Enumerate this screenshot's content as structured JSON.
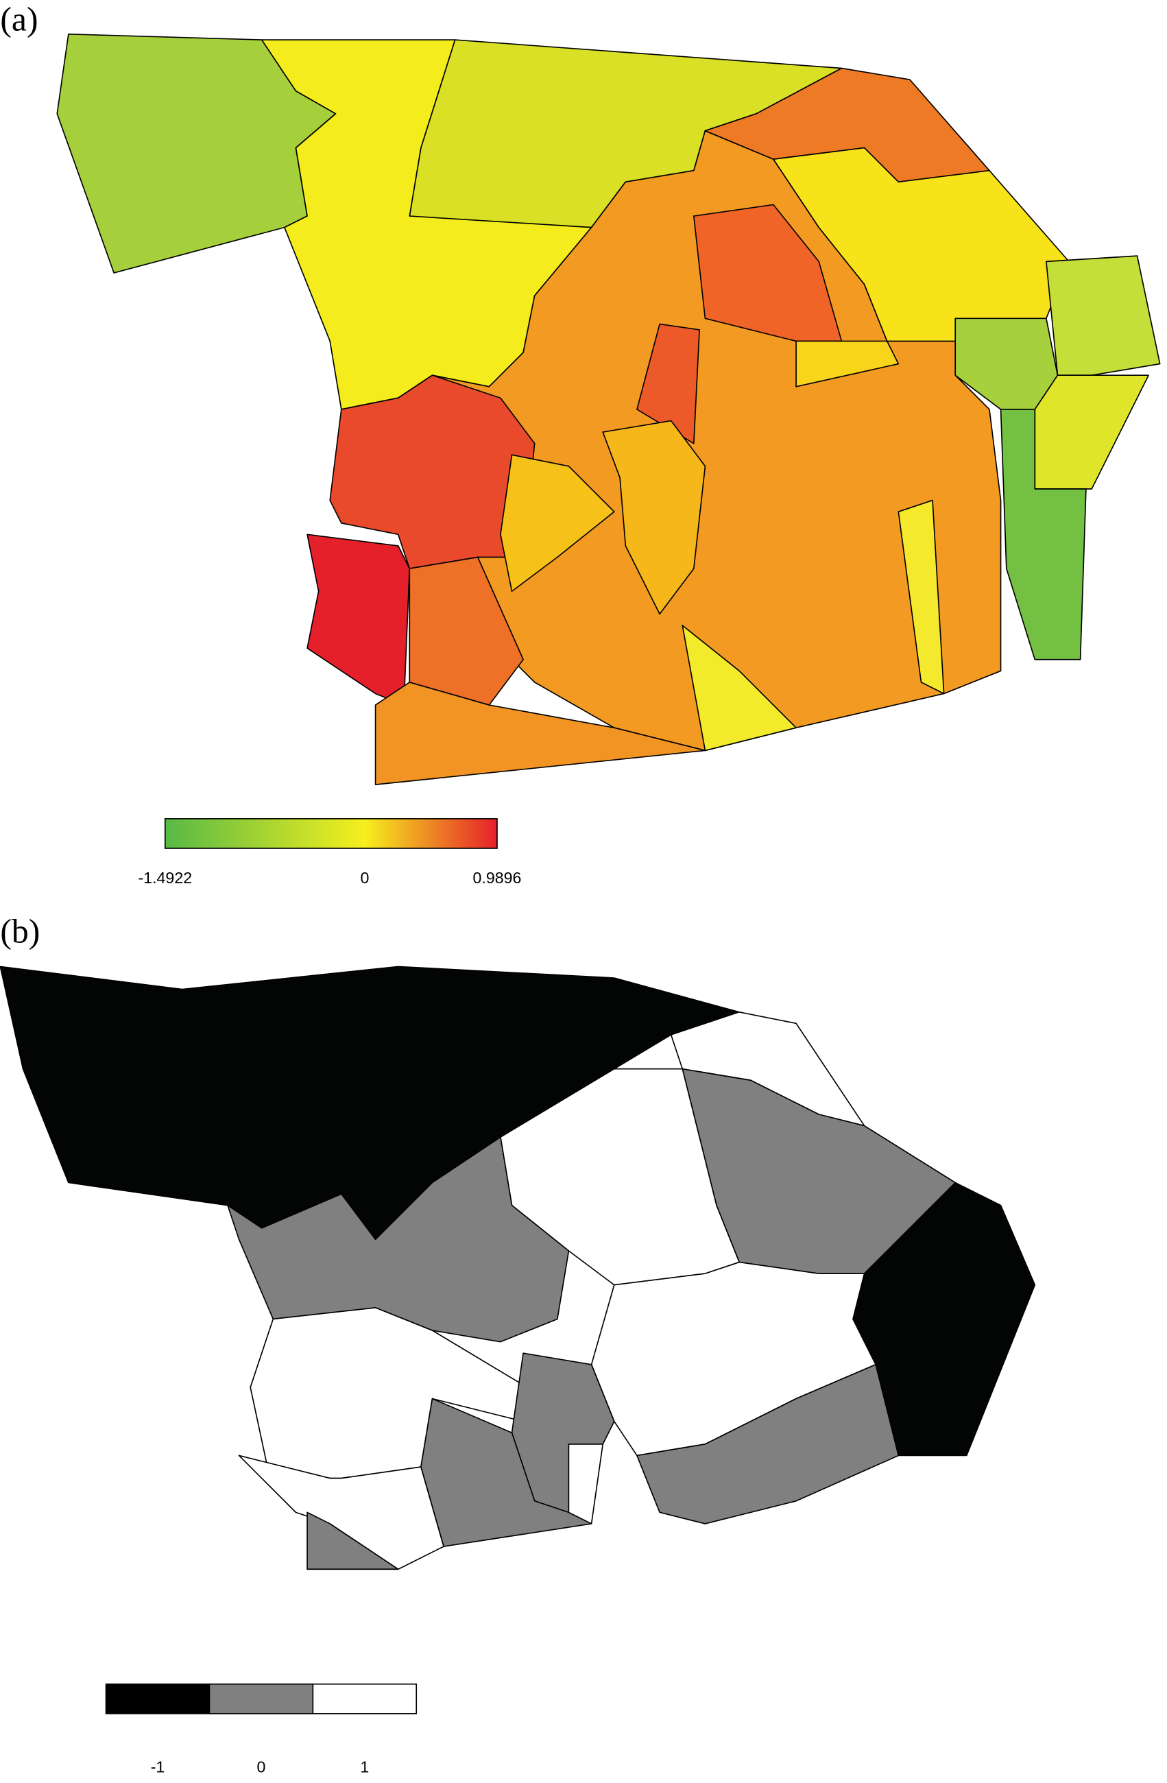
{
  "panels": [
    {
      "label": "(a)",
      "legend": {
        "ticks": [
          -1.4922,
          0,
          0.9896
        ],
        "colors": [
          "#57b947",
          "#f6ef1e",
          "#e5202a"
        ]
      }
    },
    {
      "label": "(b)",
      "legend": {
        "categories": [
          -1,
          0,
          1
        ],
        "colors": [
          "#000000",
          "#808080",
          "#ffffff"
        ]
      }
    }
  ]
}
